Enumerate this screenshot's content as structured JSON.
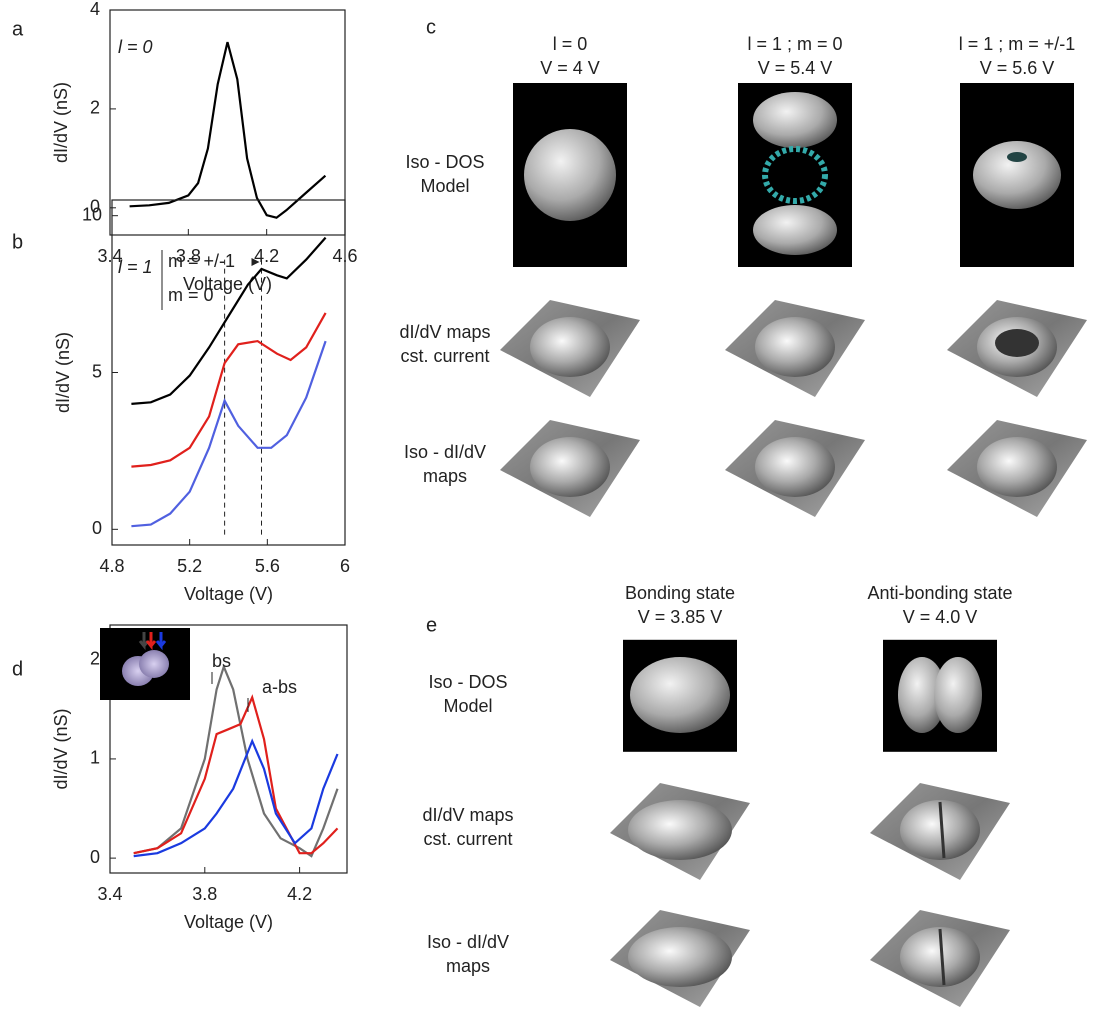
{
  "chart_data": [
    {
      "type": "line",
      "panel": "a",
      "xlabel": "Voltage (V)",
      "ylabel": "dI/dV (nS)",
      "annotations": [
        "l = 0"
      ],
      "xlim": [
        3.4,
        4.6
      ],
      "xticks": [
        3.4,
        3.8,
        4.2,
        4.6
      ],
      "ylim": [
        -0.55,
        4
      ],
      "yticks": [
        0,
        2,
        4
      ],
      "series": [
        {
          "color": "#000000",
          "x": [
            3.5,
            3.6,
            3.7,
            3.8,
            3.85,
            3.9,
            3.95,
            4.0,
            4.05,
            4.1,
            4.15,
            4.2,
            4.25,
            4.3,
            4.4,
            4.5
          ],
          "values": [
            0.03,
            0.05,
            0.1,
            0.25,
            0.5,
            1.2,
            2.5,
            3.35,
            2.6,
            1.0,
            0.2,
            -0.15,
            -0.2,
            -0.05,
            0.3,
            0.65
          ]
        }
      ]
    },
    {
      "type": "line",
      "panel": "b",
      "xlabel": "Voltage (V)",
      "ylabel": "dI/dV (nS)",
      "annotations": [
        "l = 1",
        "m = +/-1",
        "m = 0"
      ],
      "xlim": [
        4.8,
        6
      ],
      "xticks": [
        4.8,
        5.2,
        5.6,
        6
      ],
      "ylim": [
        -0.5,
        10.5
      ],
      "yticks": [
        0,
        5,
        10
      ],
      "vlines": [
        5.38,
        5.57
      ],
      "series": [
        {
          "color": "#000000",
          "x": [
            4.9,
            5.0,
            5.1,
            5.2,
            5.3,
            5.4,
            5.5,
            5.57,
            5.65,
            5.7,
            5.8,
            5.9
          ],
          "values": [
            4.0,
            4.05,
            4.3,
            4.9,
            5.8,
            6.8,
            7.8,
            8.3,
            8.1,
            8.0,
            8.6,
            9.3
          ]
        },
        {
          "color": "#e0201c",
          "x": [
            4.9,
            5.0,
            5.1,
            5.2,
            5.3,
            5.38,
            5.45,
            5.55,
            5.65,
            5.72,
            5.8,
            5.9
          ],
          "values": [
            2.0,
            2.05,
            2.2,
            2.6,
            3.6,
            5.3,
            5.9,
            6.0,
            5.6,
            5.4,
            5.8,
            6.9
          ]
        },
        {
          "color": "#5060e0",
          "x": [
            4.9,
            5.0,
            5.1,
            5.2,
            5.3,
            5.38,
            5.45,
            5.55,
            5.62,
            5.7,
            5.8,
            5.9
          ],
          "values": [
            0.1,
            0.15,
            0.5,
            1.2,
            2.6,
            4.1,
            3.3,
            2.6,
            2.6,
            3.0,
            4.2,
            6.0
          ]
        }
      ]
    },
    {
      "type": "line",
      "panel": "d",
      "xlabel": "Voltage (V)",
      "ylabel": "dI/dV (nS)",
      "annotations": [
        "bs",
        "a-bs"
      ],
      "xlim": [
        3.4,
        4.4
      ],
      "xticks": [
        3.4,
        3.8,
        4.2
      ],
      "ylim": [
        -0.15,
        2.35
      ],
      "yticks": [
        0,
        1,
        2
      ],
      "series": [
        {
          "color": "#707070",
          "x": [
            3.5,
            3.6,
            3.7,
            3.8,
            3.85,
            3.88,
            3.92,
            3.98,
            4.05,
            4.12,
            4.2,
            4.25,
            4.3,
            4.36
          ],
          "values": [
            0.05,
            0.1,
            0.3,
            1.0,
            1.7,
            1.93,
            1.7,
            1.0,
            0.45,
            0.2,
            0.1,
            0.02,
            0.3,
            0.7
          ]
        },
        {
          "color": "#e0201c",
          "x": [
            3.5,
            3.6,
            3.7,
            3.8,
            3.85,
            3.9,
            3.95,
            4.0,
            4.05,
            4.1,
            4.2,
            4.25,
            4.3,
            4.36
          ],
          "values": [
            0.05,
            0.1,
            0.25,
            0.8,
            1.25,
            1.3,
            1.35,
            1.62,
            1.2,
            0.5,
            0.05,
            0.05,
            0.15,
            0.3
          ]
        },
        {
          "color": "#1a3ae0",
          "x": [
            3.5,
            3.6,
            3.7,
            3.8,
            3.85,
            3.92,
            4.0,
            4.05,
            4.1,
            4.18,
            4.25,
            4.3,
            4.36
          ],
          "values": [
            0.02,
            0.05,
            0.15,
            0.3,
            0.45,
            0.7,
            1.18,
            0.9,
            0.45,
            0.15,
            0.3,
            0.7,
            1.05
          ]
        }
      ]
    }
  ],
  "panel_c": {
    "label": "c",
    "columns": [
      {
        "title": "l = 0",
        "voltage": "V = 4 V"
      },
      {
        "title": "l = 1 ; m = 0",
        "voltage": "V = 5.4 V"
      },
      {
        "title": "l = 1 ; m = +/-1",
        "voltage": "V = 5.6 V"
      }
    ],
    "rows": [
      [
        "Iso - DOS",
        "Model"
      ],
      [
        "dI/dV maps",
        "cst. current"
      ],
      [
        "Iso - dI/dV",
        "maps"
      ]
    ]
  },
  "panel_e": {
    "label": "e",
    "columns": [
      {
        "title": "Bonding state",
        "voltage": "V = 3.85 V"
      },
      {
        "title": "Anti-bonding state",
        "voltage": "V = 4.0 V"
      }
    ],
    "rows": [
      [
        "Iso - DOS",
        "Model"
      ],
      [
        "dI/dV maps",
        "cst. current"
      ],
      [
        "Iso - dI/dV",
        "maps"
      ]
    ]
  }
}
